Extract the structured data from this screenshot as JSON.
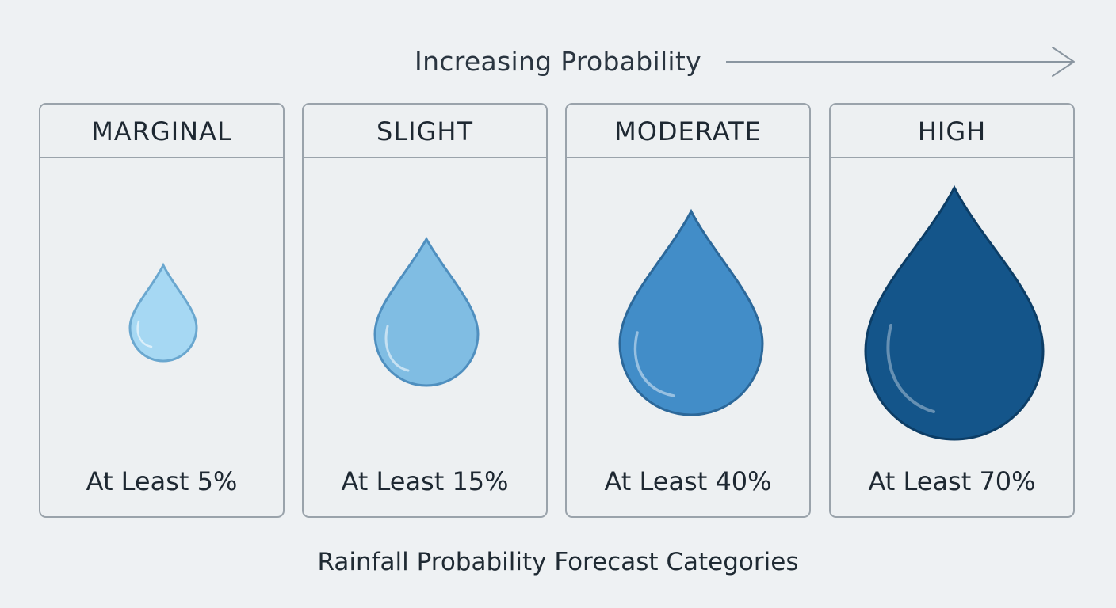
{
  "arrow": {
    "label": "Increasing Probability",
    "color": "#8a96a0"
  },
  "categories": [
    {
      "name": "MARGINAL",
      "threshold": "At Least 5%",
      "probability": 5,
      "fill": "#a6d8f3",
      "stroke": "#6aa7cf"
    },
    {
      "name": "SLIGHT",
      "threshold": "At Least 15%",
      "probability": 15,
      "fill": "#80bde3",
      "stroke": "#4f8fbf"
    },
    {
      "name": "MODERATE",
      "threshold": "At Least 40%",
      "probability": 40,
      "fill": "#428dc8",
      "stroke": "#2c689a"
    },
    {
      "name": "HIGH",
      "threshold": "At Least 70%",
      "probability": 70,
      "fill": "#14558a",
      "stroke": "#0c3d66"
    }
  ],
  "caption": "Rainfall Probability Forecast Categories"
}
